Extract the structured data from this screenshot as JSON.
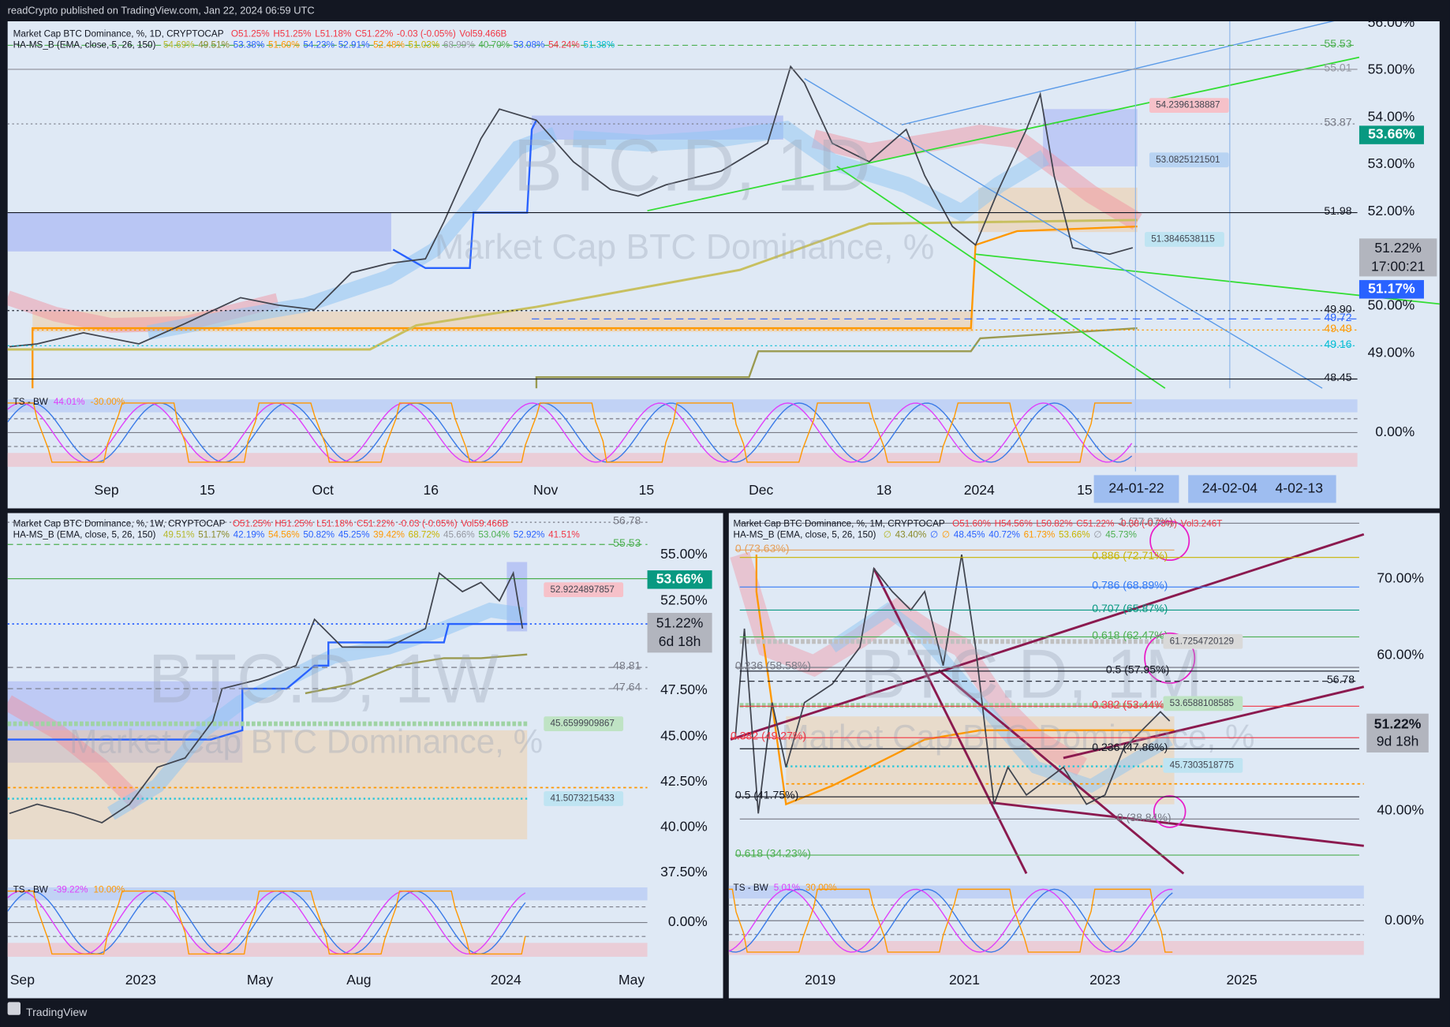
{
  "header": {
    "title": "readCrypto published on TradingView.com, Jan 22, 2024 06:59 UTC"
  },
  "panels": [
    {
      "legend": {
        "symbol": "Market Cap BTC Dominance, %, 1D, CRYPTOCAP",
        "ohlc": [
          "O51.25%",
          "H51.25%",
          "L51.18%",
          "C51.22%",
          "-0.03 (-0.05%)",
          "Vol59.466B"
        ],
        "indicator": "HA-MS_B (EMA, close, 5, 26, 150)",
        "indicator_values": [
          "54.69%",
          "49.51%",
          "53.38%",
          "51.60%",
          "54.23%",
          "52.91%",
          "52.48%",
          "51.03%",
          "68.99%",
          "40.70%",
          "53.08%",
          "54.24%",
          "51.38%"
        ]
      },
      "watermark": [
        "BTC.D, 1D",
        "Market Cap BTC Dominance, %"
      ],
      "price_axis": [
        "56.00%",
        "55.00%",
        "54.00%",
        "53.00%",
        "52.00%",
        "50.00%",
        "49.00%"
      ],
      "levels": [
        "55.53",
        "55.01",
        "53.87",
        "51.98",
        "49.90",
        "49.72",
        "49.49",
        "49.16",
        "48.45"
      ],
      "box_labels": [
        "54.2396138887",
        "53.0825121501",
        "51.3846538115"
      ],
      "price_tags": [
        "53.66%",
        "51.22%",
        "17:00:21",
        "51.17%"
      ],
      "oscillator": {
        "name": "TS - BW",
        "values": [
          "44.01%",
          "-30.00%"
        ],
        "axis": "0.00%"
      },
      "time_axis": [
        "Sep",
        "15",
        "Oct",
        "16",
        "Nov",
        "15",
        "Dec",
        "18",
        "2024",
        "15"
      ],
      "date_marks": [
        "24-01-22",
        "24-02-04",
        "4-02-13"
      ]
    },
    {
      "legend": {
        "symbol": "Market Cap BTC Dominance, %, 1W, CRYPTOCAP",
        "ohlc": [
          "O51.25%",
          "H51.25%",
          "L51.18%",
          "C51.22%",
          "-0.03 (-0.05%)",
          "Vol59.466B"
        ],
        "indicator": "HA-MS_B (EMA, close, 5, 26, 150)",
        "indicator_values": [
          "49.51%",
          "51.17%",
          "42.19%",
          "54.56%",
          "50.82%",
          "45.25%",
          "39.42%",
          "68.72%",
          "45.66%",
          "53.04%",
          "52.92%",
          "41.51%"
        ]
      },
      "watermark": [
        "BTC.D, 1W",
        "Market Cap BTC Dominance, %"
      ],
      "price_axis": [
        "55.00%",
        "52.50%",
        "47.50%",
        "45.00%",
        "42.50%",
        "40.00%",
        "37.50%"
      ],
      "levels": [
        "56.78",
        "55.53",
        "48.81",
        "47.64"
      ],
      "box_labels": [
        "52.9224897857",
        "45.6599909867",
        "41.5073215433"
      ],
      "price_tags": [
        "53.66%",
        "51.22%",
        "6d 18h"
      ],
      "oscillator": {
        "name": "TS - BW",
        "values": [
          "-39.22%",
          "10.00%"
        ],
        "axis": "0.00%"
      },
      "time_axis": [
        "Sep",
        "2023",
        "May",
        "Aug",
        "2024",
        "May"
      ]
    },
    {
      "legend": {
        "symbol": "Market Cap BTC Dominance, %, 1M, CRYPTOCAP",
        "ohlc": [
          "O51.60%",
          "H54.56%",
          "L50.82%",
          "C51.22%",
          "-0.38 (-0.73%)",
          "Vol3.246T"
        ],
        "indicator": "HA-MS_B (EMA, close, 5, 26, 150)",
        "indicator_values": [
          "∅",
          "43.40%",
          "∅",
          "∅",
          "48.45%",
          "40.72%",
          "61.73%",
          "53.66%",
          "∅",
          "45.73%"
        ]
      },
      "watermark": [
        "BTC.D, 1M",
        "Market Cap BTC Dominance, %"
      ],
      "price_axis": [
        "70.00%",
        "60.00%",
        "40.00%"
      ],
      "levels": [
        "1 (77.07%)",
        "0.886 (72.71%)",
        "0 (73.63%)",
        "0.786 (68.89%)",
        "0.707 (65.87%)",
        "0.618 (62.47%)",
        "0.236 (58.58%)",
        "0.5 (57.95%)",
        "56.78",
        "0.382 (53.44%)",
        "0.382 (49.27%)",
        "0.236 (47.86%)",
        "0.5 (41.75%)",
        "0 (38.84%)",
        "0.618 (34.23%)"
      ],
      "box_labels": [
        "61.7254720129",
        "53.6588108585",
        "45.7303518775"
      ],
      "price_tags": [
        "51.22%",
        "9d 18h"
      ],
      "oscillator": {
        "name": "TS - BW",
        "values": [
          "5.01%",
          "30.00%"
        ],
        "axis": "0.00%"
      },
      "time_axis": [
        "2019",
        "2021",
        "2023",
        "2025"
      ]
    }
  ],
  "footer": {
    "brand": "TradingView"
  }
}
